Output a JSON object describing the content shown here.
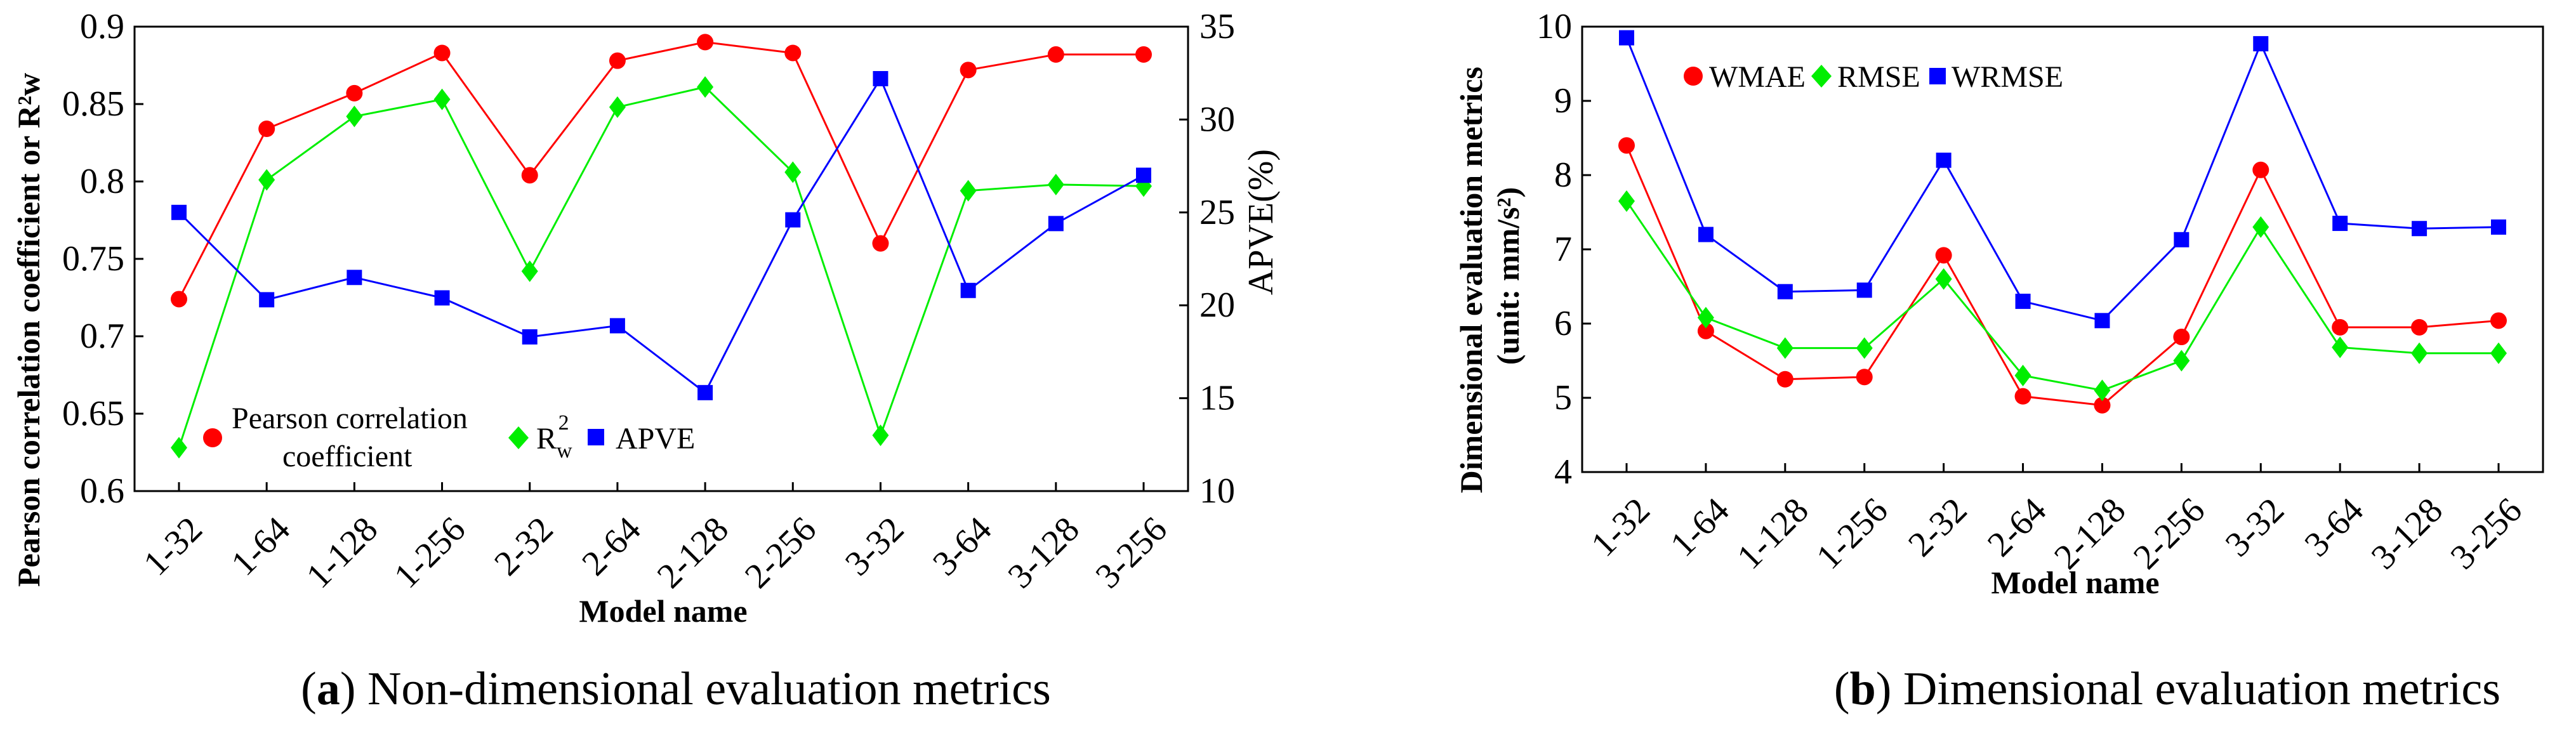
{
  "chart_data": [
    {
      "type": "line",
      "panel": "a",
      "caption_letter": "(a)",
      "caption_text": " Non-dimensional evaluation metrics",
      "xlabel": "Model name",
      "ylabel_left": "Pearson correlation coefficient or R²w",
      "ylabel_right": "APVE(%)",
      "categories": [
        "1-32",
        "1-64",
        "1-128",
        "1-256",
        "2-32",
        "2-64",
        "2-128",
        "2-256",
        "3-32",
        "3-64",
        "3-128",
        "3-256"
      ],
      "ylim_left": [
        0.6,
        0.9
      ],
      "yticks_left": [
        "0.6",
        "0.65",
        "0.7",
        "0.75",
        "0.8",
        "0.85",
        "0.9"
      ],
      "ylim_right": [
        10,
        35
      ],
      "yticks_right": [
        "10",
        "15",
        "20",
        "25",
        "30",
        "35"
      ],
      "series": [
        {
          "name": "Pearson correlation coefficient",
          "axis": "left",
          "color": "#ff0000",
          "marker": "circle",
          "values": [
            0.724,
            0.834,
            0.857,
            0.883,
            0.804,
            0.878,
            0.89,
            0.883,
            0.76,
            0.872,
            0.882,
            0.882
          ]
        },
        {
          "name": "R²w",
          "axis": "left",
          "color": "#00ee00",
          "marker": "diamond",
          "values": [
            0.628,
            0.801,
            0.842,
            0.853,
            0.742,
            0.848,
            0.861,
            0.806,
            0.636,
            0.794,
            0.798,
            0.797
          ]
        },
        {
          "name": "APVE",
          "axis": "right",
          "color": "#0000ff",
          "marker": "square",
          "values": [
            25.0,
            20.3,
            21.5,
            20.4,
            18.3,
            18.9,
            15.3,
            24.6,
            32.2,
            20.8,
            24.4,
            27.0
          ]
        }
      ],
      "legend": {
        "pearson_line1": "Pearson correlation",
        "pearson_line2": "coefficient",
        "r2_main": "R",
        "r2_sup": "2",
        "r2_sub": "w",
        "apve": "APVE"
      },
      "legend_placement": "bottom-left"
    },
    {
      "type": "line",
      "panel": "b",
      "caption_letter": "(b)",
      "caption_text": " Dimensional evaluation metrics",
      "xlabel": "Model name",
      "ylabel_line1": "Dimensional evaluation metrics",
      "ylabel_line2": "(unit: mm/s²)",
      "categories": [
        "1-32",
        "1-64",
        "1-128",
        "1-256",
        "2-32",
        "2-64",
        "2-128",
        "2-256",
        "3-32",
        "3-64",
        "3-128",
        "3-256"
      ],
      "ylim": [
        4,
        10
      ],
      "yticks": [
        "4",
        "5",
        "6",
        "7",
        "8",
        "9",
        "10"
      ],
      "series": [
        {
          "name": "WMAE",
          "color": "#ff0000",
          "marker": "circle",
          "values": [
            8.4,
            5.9,
            5.25,
            5.28,
            6.92,
            5.02,
            4.9,
            5.82,
            8.07,
            5.95,
            5.95,
            6.04
          ]
        },
        {
          "name": "RMSE",
          "color": "#00ee00",
          "marker": "diamond",
          "values": [
            7.65,
            6.08,
            5.67,
            5.67,
            6.6,
            5.3,
            5.1,
            5.5,
            7.3,
            5.68,
            5.6,
            5.6
          ]
        },
        {
          "name": "WRMSE",
          "color": "#0000ff",
          "marker": "square",
          "values": [
            9.85,
            7.2,
            6.43,
            6.45,
            8.2,
            6.3,
            6.04,
            7.13,
            9.77,
            7.35,
            7.28,
            7.3
          ]
        }
      ],
      "legend_placement": "top-left"
    }
  ]
}
